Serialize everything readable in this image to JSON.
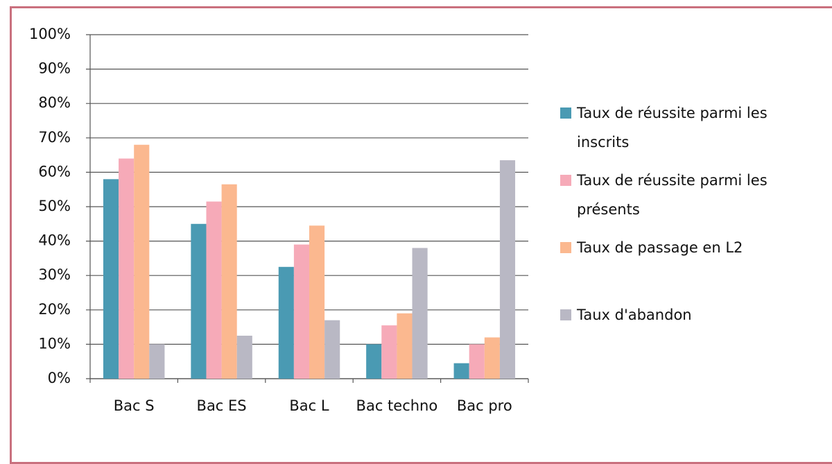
{
  "chart_data": {
    "type": "bar",
    "categories": [
      "Bac S",
      "Bac ES",
      "Bac L",
      "Bac techno",
      "Bac pro"
    ],
    "series": [
      {
        "name": "Taux de réussite parmi les inscrits",
        "color": "#4a9ab3",
        "values": [
          58,
          45,
          32.5,
          10,
          4.5
        ]
      },
      {
        "name": "Taux de réussite parmi les présents",
        "color": "#f6aab8",
        "values": [
          64,
          51.5,
          39,
          15.5,
          10
        ]
      },
      {
        "name": "Taux de passage en L2",
        "color": "#fbb88f",
        "values": [
          68,
          56.5,
          44.5,
          19,
          12
        ]
      },
      {
        "name": "Taux d'abandon",
        "color": "#b9b8c4",
        "values": [
          10,
          12.5,
          17,
          38,
          63.5
        ]
      }
    ],
    "ylim": [
      0,
      100
    ],
    "yticks": [
      {
        "value": 0,
        "label": "0%"
      },
      {
        "value": 10,
        "label": "10%"
      },
      {
        "value": 20,
        "label": "20%"
      },
      {
        "value": 30,
        "label": "30%"
      },
      {
        "value": 40,
        "label": "40%"
      },
      {
        "value": 50,
        "label": "50%"
      },
      {
        "value": 60,
        "label": "60%"
      },
      {
        "value": 70,
        "label": "70%"
      },
      {
        "value": 80,
        "label": "80%"
      },
      {
        "value": 90,
        "label": "90%"
      },
      {
        "value": 100,
        "label": "100%"
      }
    ],
    "grid": true,
    "legend": "right"
  }
}
